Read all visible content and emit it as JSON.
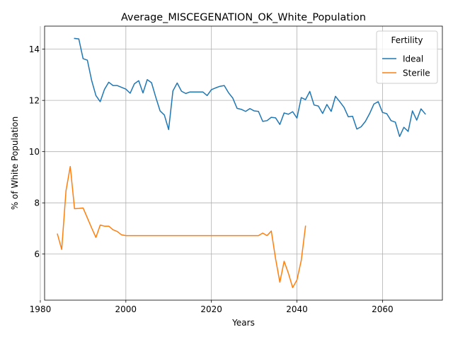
{
  "chart_data": {
    "type": "line",
    "title": "Average_MISCEGENATION_OK_White_Population",
    "xlabel": "Years",
    "ylabel": "% of White Population",
    "xlim": [
      1981,
      2074
    ],
    "ylim": [
      4.2,
      14.9
    ],
    "xticks": [
      1980,
      2000,
      2020,
      2040,
      2060
    ],
    "yticks": [
      6,
      8,
      10,
      12,
      14
    ],
    "grid": true,
    "legend": {
      "title": "Fertility",
      "position": "top-right"
    },
    "series": [
      {
        "name": "Ideal",
        "color": "#1f77b4",
        "x": [
          1988,
          1989,
          1990,
          1991,
          1992,
          1993,
          1994,
          1995,
          1996,
          1997,
          1998,
          1999,
          2000,
          2001,
          2002,
          2003,
          2004,
          2005,
          2006,
          2007,
          2008,
          2009,
          2010,
          2011,
          2012,
          2013,
          2014,
          2015,
          2016,
          2017,
          2018,
          2019,
          2020,
          2021,
          2022,
          2023,
          2024,
          2025,
          2026,
          2027,
          2028,
          2029,
          2030,
          2031,
          2032,
          2033,
          2034,
          2035,
          2036,
          2037,
          2038,
          2039,
          2040,
          2041,
          2042,
          2043,
          2044,
          2045,
          2046,
          2047,
          2048,
          2049,
          2050,
          2051,
          2052,
          2053,
          2054,
          2055,
          2056,
          2057,
          2058,
          2059,
          2060,
          2061,
          2062,
          2063,
          2064,
          2065,
          2066,
          2067,
          2068,
          2069,
          2070
        ],
        "values": [
          14.42,
          14.4,
          13.63,
          13.57,
          12.78,
          12.19,
          11.95,
          12.43,
          12.71,
          12.58,
          12.58,
          12.51,
          12.44,
          12.28,
          12.65,
          12.77,
          12.29,
          12.81,
          12.69,
          12.12,
          11.59,
          11.43,
          10.86,
          12.37,
          12.68,
          12.36,
          12.27,
          12.33,
          12.33,
          12.33,
          12.33,
          12.19,
          12.42,
          12.49,
          12.55,
          12.58,
          12.3,
          12.09,
          11.69,
          11.65,
          11.57,
          11.68,
          11.59,
          11.57,
          11.18,
          11.21,
          11.34,
          11.32,
          11.06,
          11.51,
          11.46,
          11.56,
          11.31,
          12.11,
          12.03,
          12.35,
          11.82,
          11.78,
          11.49,
          11.84,
          11.57,
          12.16,
          11.95,
          11.73,
          11.36,
          11.38,
          10.88,
          10.97,
          11.18,
          11.49,
          11.86,
          11.95,
          11.53,
          11.48,
          11.21,
          11.15,
          10.59,
          10.95,
          10.79,
          11.59,
          11.23,
          11.67,
          11.47
        ]
      },
      {
        "name": "Sterile",
        "color": "#ff7f0e",
        "x": [
          1984,
          1985,
          1986,
          1987,
          1988,
          1989,
          1990,
          1991,
          1992,
          1993,
          1994,
          1995,
          1996,
          1997,
          1998,
          1999,
          2000,
          2001,
          2002,
          2003,
          2004,
          2005,
          2006,
          2007,
          2008,
          2009,
          2010,
          2011,
          2012,
          2013,
          2014,
          2015,
          2016,
          2017,
          2018,
          2019,
          2020,
          2021,
          2022,
          2023,
          2024,
          2025,
          2026,
          2027,
          2028,
          2029,
          2030,
          2031,
          2032,
          2033,
          2034,
          2035,
          2036,
          2037,
          2038,
          2039,
          2040,
          2041,
          2042
        ],
        "values": [
          6.78,
          6.18,
          8.47,
          9.42,
          7.77,
          7.78,
          7.8,
          7.41,
          7.02,
          6.65,
          7.13,
          7.09,
          7.09,
          6.95,
          6.88,
          6.75,
          6.72,
          6.72,
          6.72,
          6.72,
          6.72,
          6.72,
          6.72,
          6.72,
          6.72,
          6.72,
          6.72,
          6.72,
          6.72,
          6.72,
          6.72,
          6.72,
          6.72,
          6.72,
          6.72,
          6.72,
          6.72,
          6.72,
          6.72,
          6.72,
          6.72,
          6.72,
          6.72,
          6.72,
          6.72,
          6.72,
          6.72,
          6.72,
          6.82,
          6.72,
          6.9,
          5.82,
          4.9,
          5.72,
          5.25,
          4.69,
          4.99,
          5.75,
          7.09
        ]
      }
    ]
  }
}
